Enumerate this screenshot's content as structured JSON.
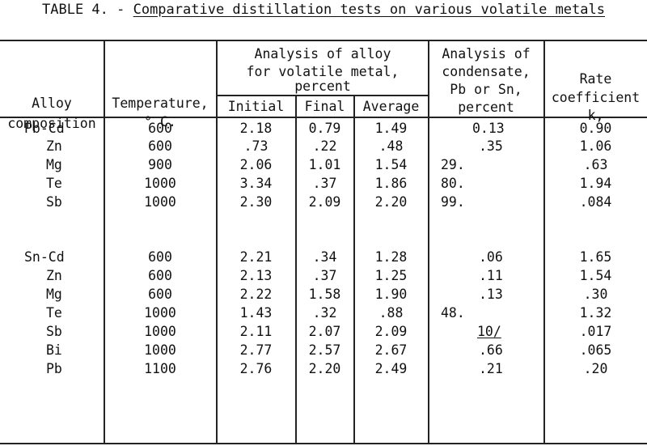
{
  "table": {
    "title_prefix": "TABLE 4. - ",
    "title_main": "Comparative distillation tests on various volatile metals",
    "headers": {
      "alloy_1": "Alloy",
      "alloy_2": "composition",
      "temp_1": "Temperature,",
      "temp_2": "° C.",
      "analysis_1": "Analysis of alloy",
      "analysis_2": "for volatile metal,",
      "analysis_3": "percent",
      "initial": "Initial",
      "final": "Final",
      "average": "Average",
      "cond_1": "Analysis of",
      "cond_2": "condensate,",
      "cond_3": "Pb or Sn,",
      "cond_4": "percent",
      "rate_1": "Rate",
      "rate_2": "coefficient",
      "rate_3": "k,"
    },
    "rows": [
      [
        "Pb-Cd",
        "600",
        "2.18",
        "0.79",
        "1.49",
        "0.13",
        "0.90"
      ],
      [
        "Zn",
        "600",
        ".73",
        ".22",
        ".48",
        ".35",
        "1.06"
      ],
      [
        "Mg",
        "900",
        "2.06",
        "1.01",
        "1.54",
        "29.",
        ".63"
      ],
      [
        "Te",
        "1000",
        "3.34",
        ".37",
        "1.86",
        "80.",
        "1.94"
      ],
      [
        "Sb",
        "1000",
        "2.30",
        "2.09",
        "2.20",
        "99.",
        ".084"
      ],
      [
        "Sn-Cd",
        "600",
        "2.21",
        ".34",
        "1.28",
        ".06",
        "1.65"
      ],
      [
        "Zn",
        "600",
        "2.13",
        ".37",
        "1.25",
        ".11",
        "1.54"
      ],
      [
        "Mg",
        "600",
        "2.22",
        "1.58",
        "1.90",
        ".13",
        ".30"
      ],
      [
        "Te",
        "1000",
        "1.43",
        ".32",
        ".88",
        "48.",
        "1.32"
      ],
      [
        "Sb",
        "1000",
        "2.11",
        "2.07",
        "2.09",
        "10/",
        ".017"
      ],
      [
        "Bi",
        "1000",
        "2.77",
        "2.57",
        "2.67",
        ".66",
        ".065"
      ],
      [
        "Pb",
        "1100",
        "2.76",
        "2.20",
        "2.49",
        ".21",
        ".20"
      ]
    ]
  }
}
